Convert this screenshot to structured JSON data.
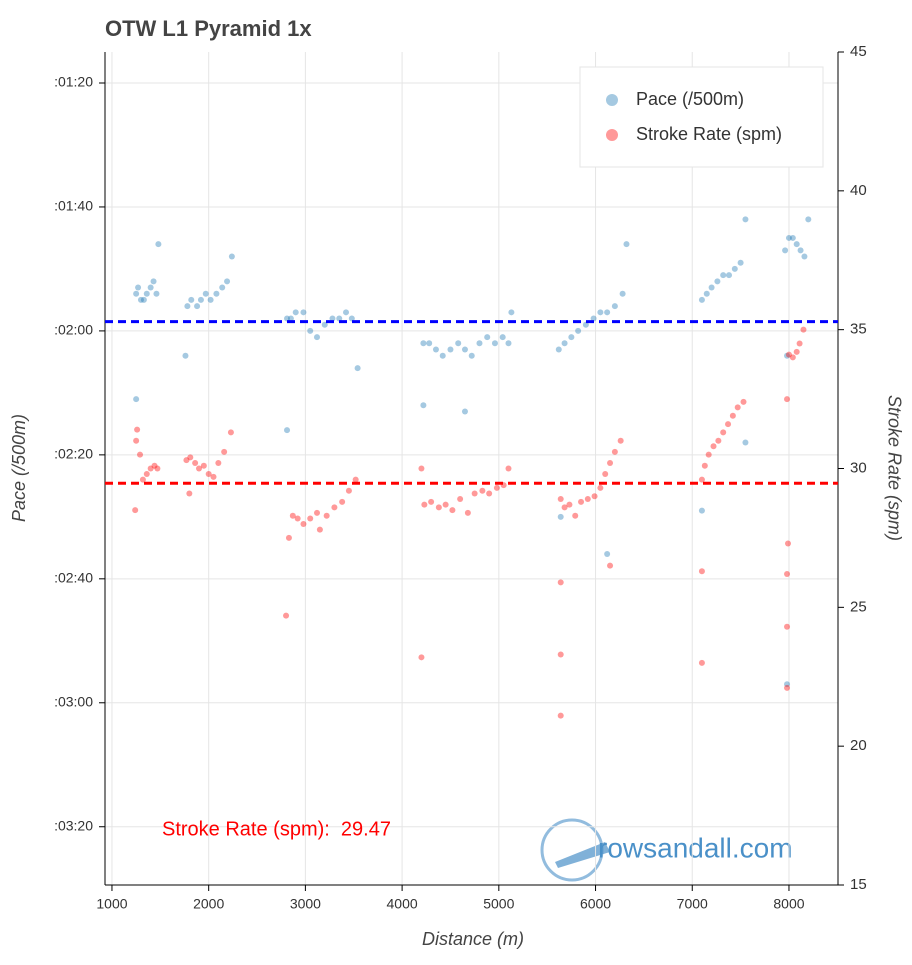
{
  "chart_data": {
    "type": "scatter",
    "title": "OTW L1 Pyramid 1x",
    "x_label": "Distance (m)",
    "y_label": "Pace (/500m)",
    "y2_label": "Stroke Rate (spm)",
    "xlim": [
      928,
      8507
    ],
    "ylim": [
      209.4,
      75
    ],
    "y2lim": [
      15,
      45
    ],
    "xticks": [
      1000,
      2000,
      3000,
      4000,
      5000,
      6000,
      7000,
      8000
    ],
    "yticks": [
      {
        "value": 80,
        "label": ":01:20"
      },
      {
        "value": 100,
        "label": ":01:40"
      },
      {
        "value": 120,
        "label": ":02:00"
      },
      {
        "value": 140,
        "label": ":02:20"
      },
      {
        "value": 160,
        "label": ":02:40"
      },
      {
        "value": 180,
        "label": ":03:00"
      },
      {
        "value": 200,
        "label": ":03:20"
      }
    ],
    "y2ticks": [
      15,
      20,
      25,
      30,
      35,
      40,
      45
    ],
    "grid": true,
    "legend": "top-right",
    "series": [
      {
        "name": "Pace (/500m)",
        "color": "#1f77b4",
        "x": [
          1250,
          1270,
          1300,
          1330,
          1360,
          1400,
          1430,
          1460,
          1480,
          1250,
          1780,
          1820,
          1880,
          1920,
          1970,
          2020,
          2080,
          2140,
          2190,
          2240,
          1760,
          2810,
          2850,
          2900,
          2980,
          3050,
          3120,
          3200,
          3280,
          3350,
          3420,
          3480,
          3540,
          2810,
          4220,
          4280,
          4350,
          4420,
          4500,
          4580,
          4650,
          4720,
          4800,
          4880,
          4960,
          5040,
          5100,
          5130,
          4220,
          4650,
          5620,
          5680,
          5750,
          5820,
          5900,
          5980,
          6050,
          6120,
          6200,
          6280,
          6320,
          5640,
          6120,
          7100,
          7150,
          7200,
          7260,
          7320,
          7380,
          7440,
          7500,
          7550,
          7100,
          7550,
          7960,
          8000,
          8040,
          8080,
          8120,
          8160,
          8200,
          7980,
          7980
        ],
        "values": [
          114,
          113,
          115,
          115,
          114,
          113,
          112,
          114,
          106,
          131,
          116,
          115,
          116,
          115,
          114,
          115,
          114,
          113,
          112,
          108,
          124,
          118,
          118,
          117,
          117,
          120,
          121,
          119,
          118,
          118,
          117,
          118,
          126,
          136,
          122,
          122,
          123,
          124,
          123,
          122,
          123,
          124,
          122,
          121,
          122,
          121,
          122,
          117,
          132,
          133,
          123,
          122,
          121,
          120,
          119,
          118,
          117,
          117,
          116,
          114,
          106,
          150,
          156,
          115,
          114,
          113,
          112,
          111,
          111,
          110,
          109,
          102,
          149,
          138,
          107,
          105,
          105,
          106,
          107,
          108,
          102,
          177,
          124
        ]
      },
      {
        "name": "Stroke Rate (spm)",
        "color": "#ff0000",
        "axis": "y2",
        "x": [
          1240,
          1260,
          1290,
          1320,
          1360,
          1400,
          1440,
          1470,
          1250,
          1770,
          1810,
          1860,
          1900,
          1950,
          2000,
          2050,
          2100,
          2160,
          2230,
          1800,
          2800,
          2830,
          2870,
          2920,
          2980,
          3050,
          3120,
          3150,
          3220,
          3300,
          3380,
          3450,
          3520,
          4200,
          4230,
          4300,
          4380,
          4450,
          4520,
          4600,
          4680,
          4750,
          4830,
          4900,
          4980,
          5050,
          5100,
          4200,
          5640,
          5680,
          5730,
          5790,
          5850,
          5920,
          5990,
          6050,
          6100,
          6150,
          6200,
          6260,
          5640,
          5640,
          5640,
          6150,
          7100,
          7130,
          7170,
          7220,
          7270,
          7320,
          7370,
          7420,
          7470,
          7530,
          7100,
          7100,
          7980,
          8000,
          8040,
          8080,
          8110,
          8150,
          7980,
          7980,
          7980,
          7990
        ],
        "values": [
          28.5,
          31.4,
          30.5,
          29.6,
          29.8,
          30,
          30.1,
          30,
          31,
          30.3,
          30.4,
          30.2,
          30,
          30.1,
          29.8,
          29.7,
          30.2,
          30.6,
          31.3,
          29.1,
          24.7,
          27.5,
          28.3,
          28.2,
          28,
          28.2,
          28.4,
          27.8,
          28.3,
          28.6,
          28.8,
          29.2,
          29.6,
          30,
          28.7,
          28.8,
          28.6,
          28.7,
          28.5,
          28.9,
          28.4,
          29.1,
          29.2,
          29.1,
          29.3,
          29.4,
          30,
          23.2,
          28.9,
          28.6,
          28.7,
          28.3,
          28.8,
          28.9,
          29,
          29.3,
          29.8,
          30.2,
          30.6,
          31,
          21.1,
          23.3,
          25.9,
          26.5,
          29.6,
          30.1,
          30.5,
          30.8,
          31,
          31.3,
          31.6,
          31.9,
          32.2,
          32.4,
          23,
          26.3,
          32.5,
          34.1,
          34,
          34.2,
          34.5,
          35,
          22.1,
          24.3,
          26.2,
          27.3
        ]
      }
    ],
    "hlines": [
      {
        "value": 118.5,
        "color": "#0000ff"
      },
      {
        "value": 29.47,
        "color": "#ff0000",
        "axis": "y2"
      }
    ],
    "annotation": {
      "text": "Stroke Rate (spm):  29.47",
      "color": "#ff0000"
    },
    "watermark": "rowsandall.com"
  }
}
